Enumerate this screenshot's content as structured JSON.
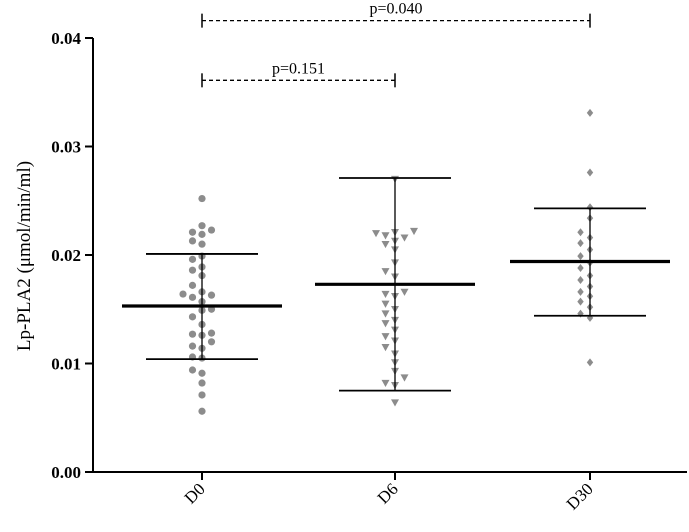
{
  "chart_data": {
    "type": "scatter",
    "ylabel": "Lp-PLA2 (μmol/min/ml)",
    "xlabel": "",
    "ylim": [
      0,
      0.04
    ],
    "yticks": [
      0.0,
      0.01,
      0.02,
      0.03,
      0.04
    ],
    "ytick_labels": [
      "0.00",
      "0.01",
      "0.02",
      "0.03",
      "0.04"
    ],
    "categories": [
      "D0",
      "D6",
      "D30"
    ],
    "grid": false,
    "series": [
      {
        "category": "D0",
        "marker": "circle",
        "color": "#8c8c8c",
        "mean": 0.0153,
        "sd_upper": 0.0201,
        "sd_lower": 0.0104,
        "points": [
          0.0252,
          0.0227,
          0.0223,
          0.0221,
          0.0219,
          0.0213,
          0.021,
          0.0199,
          0.0196,
          0.0189,
          0.0186,
          0.0181,
          0.0172,
          0.0166,
          0.0164,
          0.0163,
          0.0161,
          0.0157,
          0.015,
          0.0149,
          0.0143,
          0.0136,
          0.0128,
          0.0127,
          0.0126,
          0.012,
          0.0116,
          0.0114,
          0.0106,
          0.0105,
          0.0094,
          0.0091,
          0.0082,
          0.0071,
          0.0056
        ]
      },
      {
        "category": "D6",
        "marker": "triangle-down",
        "color": "#8c8c8c",
        "mean": 0.0173,
        "sd_upper": 0.0271,
        "sd_lower": 0.0075,
        "points": [
          0.027,
          0.0222,
          0.0221,
          0.022,
          0.0218,
          0.0216,
          0.0213,
          0.021,
          0.0205,
          0.0193,
          0.0185,
          0.018,
          0.0166,
          0.0164,
          0.0162,
          0.0155,
          0.015,
          0.0146,
          0.014,
          0.0137,
          0.0131,
          0.0125,
          0.0121,
          0.0115,
          0.0109,
          0.0101,
          0.0093,
          0.0087,
          0.0082,
          0.008,
          0.0064
        ]
      },
      {
        "category": "D30",
        "marker": "diamond",
        "color": "#8c8c8c",
        "mean": 0.0194,
        "sd_upper": 0.0243,
        "sd_lower": 0.0144,
        "points": [
          0.0331,
          0.0276,
          0.0244,
          0.0234,
          0.0221,
          0.0216,
          0.0211,
          0.0205,
          0.0199,
          0.0193,
          0.0188,
          0.0181,
          0.0177,
          0.0171,
          0.0166,
          0.0162,
          0.0157,
          0.0152,
          0.0146,
          0.0142,
          0.0101
        ]
      }
    ],
    "annotations": [
      {
        "from": "D0",
        "to": "D30",
        "label": "p=0.040",
        "y": 0.0416
      },
      {
        "from": "D0",
        "to": "D6",
        "label": "p=0.151",
        "y": 0.0361
      }
    ]
  }
}
